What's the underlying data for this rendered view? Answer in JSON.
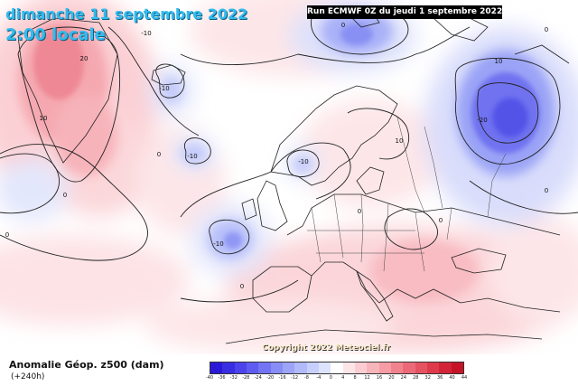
{
  "header": {
    "date": "dimanche 11 septembre 2022",
    "time": "2:00 locale",
    "run": "Run ECMWF 0Z du jeudi 1 septembre 2022"
  },
  "footer": {
    "copyright": "Copyright 2022 Meteociel.fr",
    "variable": "Anomalie Géop. z500 (dam)",
    "lead": "(+240h)"
  },
  "legend": {
    "labels": [
      "-40",
      "-36",
      "-32",
      "-28",
      "-24",
      "-20",
      "-16",
      "-12",
      "-8",
      "-4",
      "0",
      "4",
      "8",
      "12",
      "16",
      "20",
      "24",
      "28",
      "32",
      "36",
      "40",
      "44"
    ],
    "colors": [
      "#2a1ad8",
      "#3a2ee2",
      "#4c44ea",
      "#5e5cf0",
      "#7274f4",
      "#878cf6",
      "#9ca4f8",
      "#b1bafa",
      "#c7cffc",
      "#dde3fd",
      "#ffffff",
      "#fde4e6",
      "#fbcdd2",
      "#f8b4bb",
      "#f59ca4",
      "#f1838e",
      "#ec6a78",
      "#e55262",
      "#dd3a4c",
      "#d32438",
      "#c51428"
    ]
  },
  "map": {
    "contour_labels": [
      "20",
      "-10",
      "-10",
      "-10",
      "-10",
      "-10",
      "0",
      "0",
      "10",
      "-20",
      "10",
      "0",
      "0",
      "0",
      "0",
      "10",
      "0",
      "0",
      "0"
    ],
    "colors": {
      "ocean_neutral": "#ffffff",
      "coast": "#222222",
      "contour": "#222222"
    }
  }
}
